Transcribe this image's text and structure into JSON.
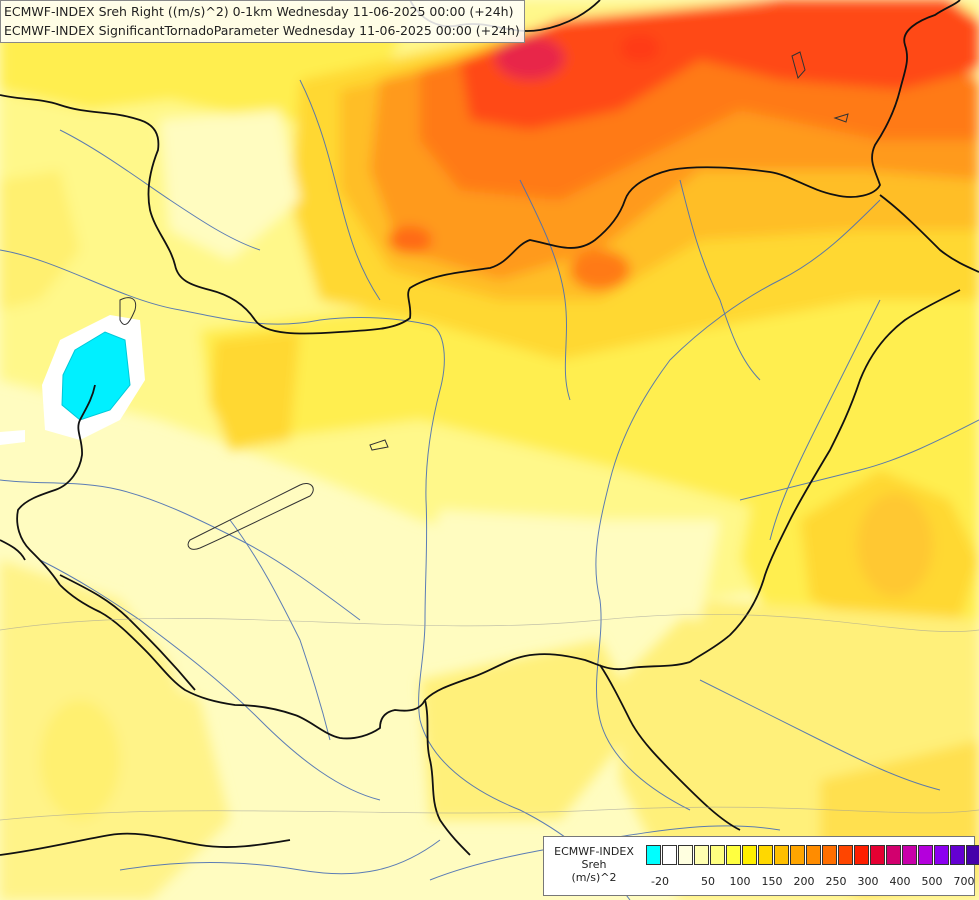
{
  "titles": {
    "line1": "ECMWF-INDEX Sreh Right ((m/s)^2) 0-1km Wednesday 11-06-2025 00:00 (+24h)",
    "line2": "ECMWF-INDEX SignificantTornadoParameter Wednesday 11-06-2025 00:00 (+24h)"
  },
  "legend": {
    "label1": "ECMWF-INDEX",
    "label2": "Sreh",
    "label3": "(m/s)^2",
    "colors": [
      "#00ffff",
      "#ffffff",
      "#ffffe0",
      "#ffffb0",
      "#ffff80",
      "#ffff40",
      "#ffef00",
      "#ffd800",
      "#ffbf00",
      "#ffa500",
      "#ff8c00",
      "#ff6e00",
      "#ff4500",
      "#ff1e00",
      "#e60032",
      "#d2006e",
      "#c800aa",
      "#b400dc",
      "#8c00f0",
      "#6400d2",
      "#4600aa",
      "#000080"
    ],
    "ticks": [
      {
        "text": "-20",
        "pos": 0
      },
      {
        "text": "50",
        "pos": 3
      },
      {
        "text": "100",
        "pos": 5
      },
      {
        "text": "150",
        "pos": 7
      },
      {
        "text": "200",
        "pos": 9
      },
      {
        "text": "250",
        "pos": 11
      },
      {
        "text": "300",
        "pos": 13
      },
      {
        "text": "400",
        "pos": 15
      },
      {
        "text": "500",
        "pos": 17
      },
      {
        "text": "700",
        "pos": 19
      }
    ]
  },
  "map": {
    "field_colors": {
      "pale": "#fffcc0",
      "light": "#fff88a",
      "yellow": "#ffee50",
      "gold": "#ffd830",
      "amber": "#ffbe28",
      "orange": "#ff9a1a",
      "darkorange": "#ff7a14",
      "red": "#ff4a14",
      "crimson": "#e8284a",
      "cyan": "#00f0ff"
    }
  }
}
